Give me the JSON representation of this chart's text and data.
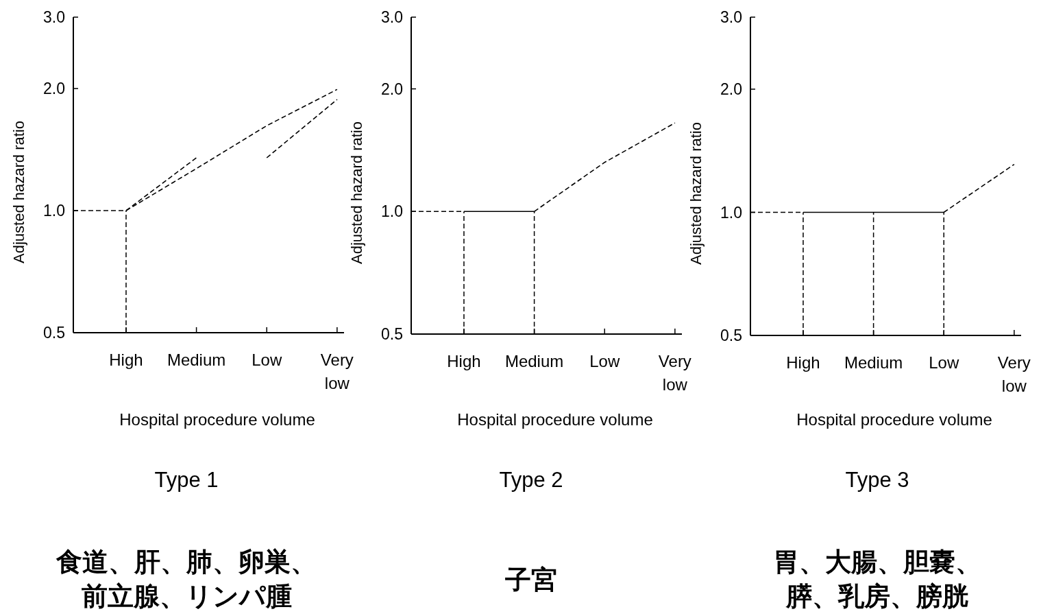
{
  "chart_data": [
    {
      "type": "line",
      "title": "Type 1",
      "xlabel": "Hospital procedure volume",
      "ylabel": "Adjusted hazard ratio",
      "categories": [
        "High",
        "Medium",
        "Low",
        "Very low"
      ],
      "log": true,
      "ylim": [
        0.5,
        3.0
      ],
      "yticks": [
        {
          "value": 0.5,
          "label": "0.5"
        },
        {
          "value": 1,
          "label": "1.0"
        },
        {
          "value": 2,
          "label": "2.0"
        },
        {
          "value": 3,
          "label": "3.0"
        }
      ],
      "series": [
        {
          "color": "#000000",
          "line_style": "dashed",
          "values": [
            1.0,
            1.27,
            1.62,
            1.99
          ]
        },
        {
          "color": "#000000",
          "line_style": "dashed",
          "values": [
            1.0,
            1.35,
            null,
            null
          ]
        },
        {
          "color": "#000000",
          "line_style": "dashed",
          "values": [
            null,
            null,
            1.35,
            1.88
          ]
        }
      ],
      "ref_lines": [
        {
          "axis": "y",
          "value": 1.0,
          "line_style": "dashed"
        },
        {
          "axis": "x",
          "value": "High",
          "line_style": "dashed"
        }
      ],
      "annotations": [
        "食道、肝、肺、卵巣、",
        "前立腺、リンパ腫"
      ]
    },
    {
      "type": "line",
      "title": "Type 2",
      "xlabel": "Hospital procedure volume",
      "ylabel": "Adjusted hazard ratio",
      "categories": [
        "High",
        "Medium",
        "Low",
        "Very low"
      ],
      "log": true,
      "ylim": [
        0.5,
        3.0
      ],
      "yticks": [
        {
          "value": 0.5,
          "label": "0.5"
        },
        {
          "value": 1,
          "label": "1.0"
        },
        {
          "value": 2,
          "label": "2.0"
        },
        {
          "value": 3,
          "label": "3.0"
        }
      ],
      "series": [
        {
          "color": "#000000",
          "line_style": "solid",
          "values": [
            1.0,
            1.0,
            null,
            null
          ]
        },
        {
          "color": "#000000",
          "line_style": "dashed",
          "values": [
            null,
            1.0,
            1.32,
            1.65
          ]
        }
      ],
      "ref_lines": [
        {
          "axis": "y",
          "value": 1.0,
          "line_style": "dashed"
        },
        {
          "axis": "x",
          "value": "High",
          "line_style": "dashed"
        },
        {
          "axis": "x",
          "value": "Medium",
          "line_style": "dashed"
        }
      ],
      "annotations": [
        "子宮"
      ]
    },
    {
      "type": "line",
      "title": "Type 3",
      "xlabel": "Hospital procedure volume",
      "ylabel": "Adjusted hazard ratio",
      "categories": [
        "High",
        "Medium",
        "Low",
        "Very low"
      ],
      "log": true,
      "ylim": [
        0.5,
        3.0
      ],
      "yticks": [
        {
          "value": 0.5,
          "label": "0.5"
        },
        {
          "value": 1,
          "label": "1.0"
        },
        {
          "value": 2,
          "label": "2.0"
        },
        {
          "value": 3,
          "label": "3.0"
        }
      ],
      "series": [
        {
          "color": "#000000",
          "line_style": "solid",
          "values": [
            1.0,
            1.0,
            1.0,
            null
          ]
        },
        {
          "color": "#000000",
          "line_style": "dashed",
          "values": [
            null,
            null,
            1.0,
            1.31
          ]
        }
      ],
      "ref_lines": [
        {
          "axis": "y",
          "value": 1.0,
          "line_style": "dashed"
        },
        {
          "axis": "x",
          "value": "High",
          "line_style": "dashed"
        },
        {
          "axis": "x",
          "value": "Medium",
          "line_style": "dashed"
        },
        {
          "axis": "x",
          "value": "Low",
          "line_style": "dashed"
        }
      ],
      "annotations": [
        "胃、大腸、胆嚢、",
        "膵、乳房、膀胱"
      ]
    }
  ]
}
